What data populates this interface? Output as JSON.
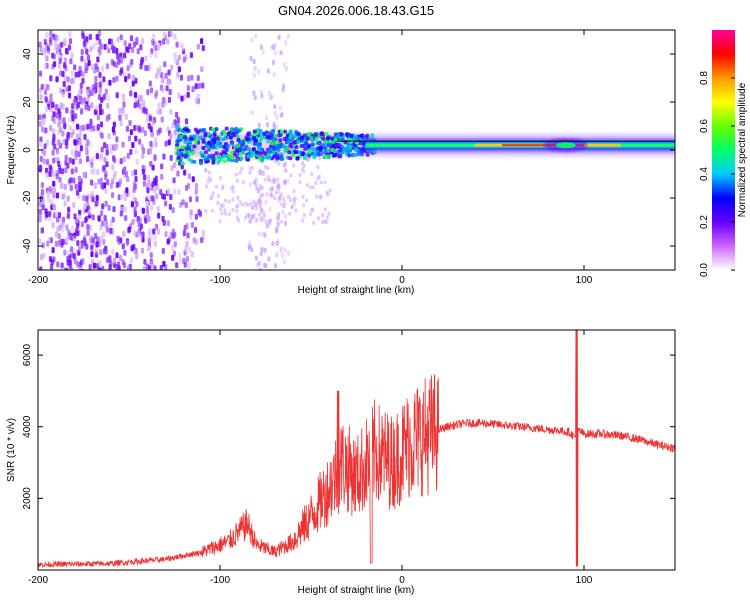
{
  "title": "GN04.2026.006.18.43.G15",
  "chart_data": [
    {
      "type": "heatmap",
      "title": "GN04.2026.006.18.43.G15",
      "xlabel": "Height of straight line (km)",
      "ylabel": "Frequency (Hz)",
      "xlim": [
        -200,
        150
      ],
      "ylim": [
        -50,
        50
      ],
      "x_ticks": [
        -200,
        -100,
        0,
        100
      ],
      "y_ticks": [
        -40,
        -20,
        0,
        20,
        40
      ],
      "colorbar": {
        "label": "Normalized spectral amplitude",
        "range": [
          0,
          1
        ],
        "ticks": [
          "0.0",
          "0.2",
          "0.4",
          "0.6",
          "0.8"
        ],
        "colors": [
          "#ffffff",
          "#cc66ff",
          "#6600ff",
          "#0000ff",
          "#00ccff",
          "#00ff66",
          "#66ff00",
          "#ffff00",
          "#ff9900",
          "#ff0000",
          "#ff0099"
        ]
      },
      "ridge": {
        "description": "dominant frequency near 2 Hz",
        "x_start": -125,
        "x_end": 150,
        "freq_hz": 2
      },
      "noise_region_x": [
        -200,
        -110
      ]
    },
    {
      "type": "line",
      "xlabel": "Height of straight line (km)",
      "ylabel": "SNR (10 * v/v)",
      "xlim": [
        -200,
        150
      ],
      "ylim": [
        0,
        6700
      ],
      "x_ticks": [
        -200,
        -100,
        0,
        100
      ],
      "y_ticks": [
        2000,
        4000,
        6000
      ],
      "color": "#ee3333",
      "series": [
        {
          "name": "SNR",
          "x": [
            -200,
            -160,
            -130,
            -110,
            -95,
            -85,
            -80,
            -70,
            -60,
            -50,
            -40,
            -33,
            -25,
            -15,
            -5,
            5,
            15,
            25,
            35,
            45,
            55,
            65,
            75,
            85,
            92,
            95,
            97,
            100,
            110,
            120,
            130,
            140,
            150
          ],
          "y": [
            150,
            180,
            300,
            500,
            800,
            1300,
            700,
            500,
            800,
            1500,
            2300,
            3000,
            2600,
            3300,
            3000,
            3600,
            3800,
            4000,
            4100,
            4100,
            4050,
            4000,
            3950,
            3900,
            3850,
            3700,
            3900,
            3800,
            3800,
            3750,
            3650,
            3500,
            3400
          ]
        }
      ],
      "spikes": [
        {
          "x": -35,
          "y_max": 5000
        },
        {
          "x": -17,
          "y_min": 200
        },
        {
          "x": 96,
          "y_max": 6700,
          "y_min": 100
        }
      ]
    }
  ]
}
